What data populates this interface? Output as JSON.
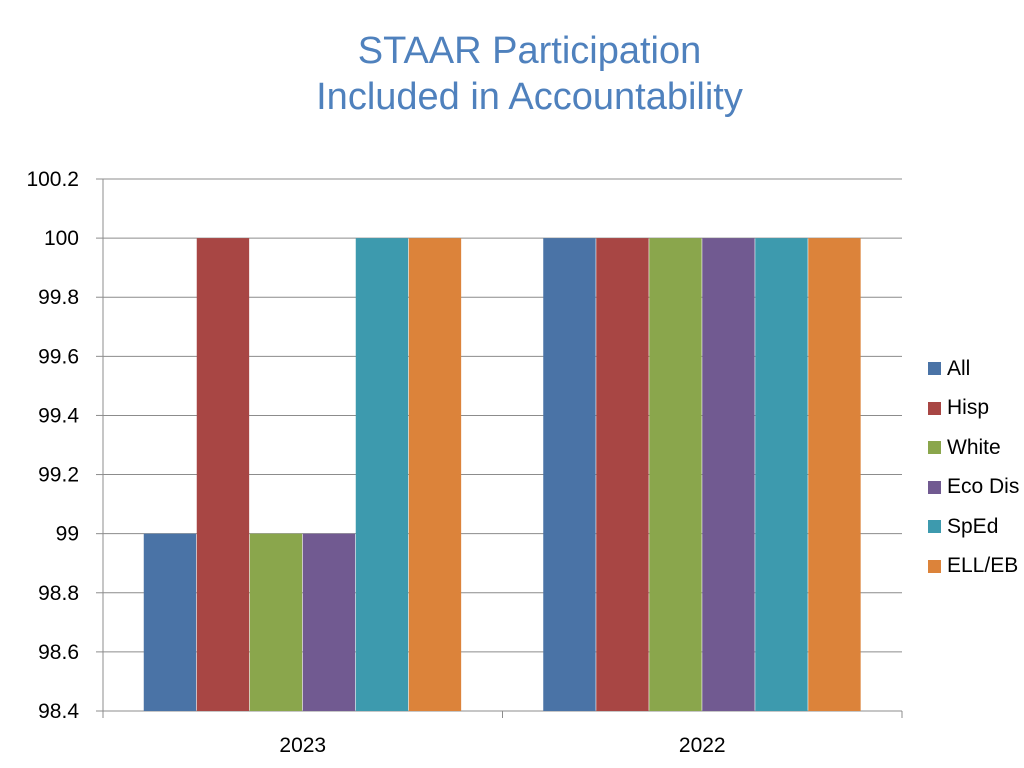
{
  "chart_data": {
    "type": "bar",
    "title": "STAAR Participation",
    "subtitle": "Included in Accountability",
    "categories": [
      "2023",
      "2022"
    ],
    "series": [
      {
        "name": "All",
        "color": "#4a73a6",
        "values": [
          99,
          100
        ]
      },
      {
        "name": "Hisp",
        "color": "#a84644",
        "values": [
          100,
          100
        ]
      },
      {
        "name": "White",
        "color": "#8aa64c",
        "values": [
          99,
          100
        ]
      },
      {
        "name": "Eco Dis",
        "color": "#715a91",
        "values": [
          99,
          100
        ]
      },
      {
        "name": "SpEd",
        "color": "#3d9aae",
        "values": [
          100,
          100
        ]
      },
      {
        "name": "ELL/EB",
        "color": "#dc833a",
        "values": [
          100,
          100
        ]
      }
    ],
    "ylim": [
      98.4,
      100.2
    ],
    "yticks": [
      "98.4",
      "98.6",
      "98.8",
      "99",
      "99.2",
      "99.4",
      "99.6",
      "99.8",
      "100",
      "100.2"
    ],
    "grid": true,
    "legend_position": "right"
  }
}
